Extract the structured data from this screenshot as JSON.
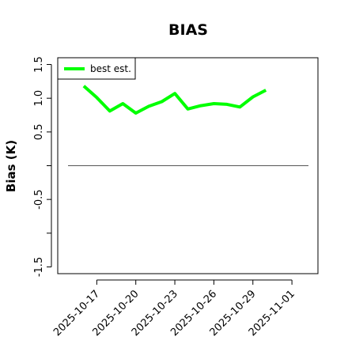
{
  "chart_data": {
    "type": "line",
    "title": "BIAS",
    "y_label": "Bias (K)",
    "x": [
      "2025-10-16",
      "2025-10-17",
      "2025-10-18",
      "2025-10-19",
      "2025-10-20",
      "2025-10-21",
      "2025-10-22",
      "2025-10-23",
      "2025-10-24",
      "2025-10-25",
      "2025-10-26",
      "2025-10-27",
      "2025-10-28",
      "2025-10-29",
      "2025-10-30"
    ],
    "series": [
      {
        "name": "best est.",
        "color": "#00ff00",
        "values": [
          1.18,
          1.01,
          0.81,
          0.92,
          0.78,
          0.88,
          0.95,
          1.07,
          0.84,
          0.89,
          0.92,
          0.91,
          0.87,
          1.02,
          1.12
        ]
      }
    ],
    "xlim": [
      "2025-10-14",
      "2025-11-03"
    ],
    "xticks": [
      "2025-10-17",
      "2025-10-20",
      "2025-10-23",
      "2025-10-26",
      "2025-10-29",
      "2025-11-01"
    ],
    "ylim": [
      -1.6,
      1.6
    ],
    "yticks": [
      {
        "value": -1.5,
        "label": "-1.5"
      },
      {
        "value": -1.0,
        "label": null
      },
      {
        "value": -0.5,
        "label": "-0.5"
      },
      {
        "value": 0,
        "label": null
      },
      {
        "value": 0.5,
        "label": "0.5"
      },
      {
        "value": 1.0,
        "label": "1.0"
      },
      {
        "value": 1.5,
        "label": "1.5"
      }
    ],
    "hline": 0,
    "legend": "top-left"
  }
}
